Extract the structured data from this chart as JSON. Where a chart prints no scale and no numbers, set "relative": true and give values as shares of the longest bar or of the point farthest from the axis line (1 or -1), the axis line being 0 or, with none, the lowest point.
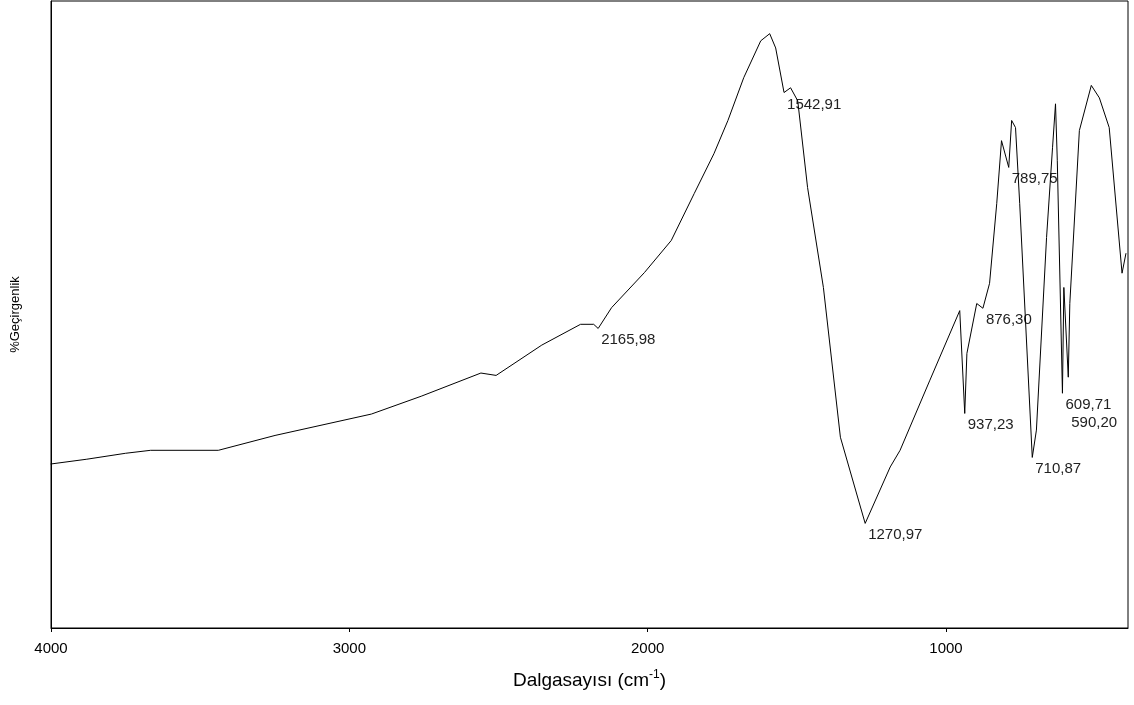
{
  "chart_data": {
    "type": "line",
    "xlabel": "Dalgasayısı (cm$^{-1}$)",
    "ylabel": "%Geçirgenlik",
    "relative": true,
    "xlim": [
      4000,
      390
    ],
    "xticks": [
      4000,
      3000,
      2000,
      1000
    ],
    "grid": false,
    "marker": "none",
    "line_style": "solid",
    "series": [
      {
        "color": "#000000",
        "x": [
          4000,
          3880,
          3750,
          3666,
          3439,
          3249,
          2926,
          2759,
          2559,
          2508,
          2355,
          2225,
          2181,
          2165.98,
          2121,
          2011,
          1921,
          1844,
          1778,
          1731,
          1678,
          1621,
          1591,
          1571,
          1542.91,
          1521,
          1497,
          1464,
          1411,
          1354,
          1270.97,
          1187,
          1154,
          1054,
          954,
          937.23,
          930,
          897,
          876.3,
          854,
          830,
          814,
          789.75,
          780,
          767,
          753,
          710.87,
          697,
          663,
          643,
          633,
          627,
          609.71,
          605,
          590.2,
          585,
          553,
          513,
          486,
          453,
          410,
          397
        ],
        "values": [
          0.276,
          0.284,
          0.294,
          0.299,
          0.299,
          0.324,
          0.36,
          0.39,
          0.429,
          0.425,
          0.476,
          0.511,
          0.511,
          0.504,
          0.539,
          0.598,
          0.652,
          0.731,
          0.798,
          0.854,
          0.926,
          0.988,
          1,
          0.976,
          0.901,
          0.909,
          0.887,
          0.741,
          0.573,
          0.321,
          0.176,
          0.271,
          0.299,
          0.417,
          0.534,
          0.361,
          0.462,
          0.546,
          0.538,
          0.58,
          0.714,
          0.82,
          0.775,
          0.854,
          0.842,
          0.714,
          0.287,
          0.333,
          0.657,
          0.808,
          0.882,
          0.787,
          0.395,
          0.573,
          0.422,
          0.546,
          0.837,
          0.913,
          0.892,
          0.842,
          0.597,
          0.63
        ]
      }
    ],
    "annotations": [
      {
        "text": "2165,98",
        "x": 2165.98,
        "y": 0.504
      },
      {
        "text": "1542,91",
        "x": 1542.91,
        "y": 0.901
      },
      {
        "text": "1270,97",
        "x": 1270.97,
        "y": 0.176
      },
      {
        "text": "937,23",
        "x": 937.23,
        "y": 0.361
      },
      {
        "text": "876,30",
        "x": 876.3,
        "y": 0.538
      },
      {
        "text": "789,75",
        "x": 789.75,
        "y": 0.775
      },
      {
        "text": "710,87",
        "x": 710.87,
        "y": 0.287
      },
      {
        "text": "609,71",
        "x": 609.71,
        "y": 0.395
      },
      {
        "text": "590,20",
        "x": 590.2,
        "y": 0.422
      }
    ]
  }
}
